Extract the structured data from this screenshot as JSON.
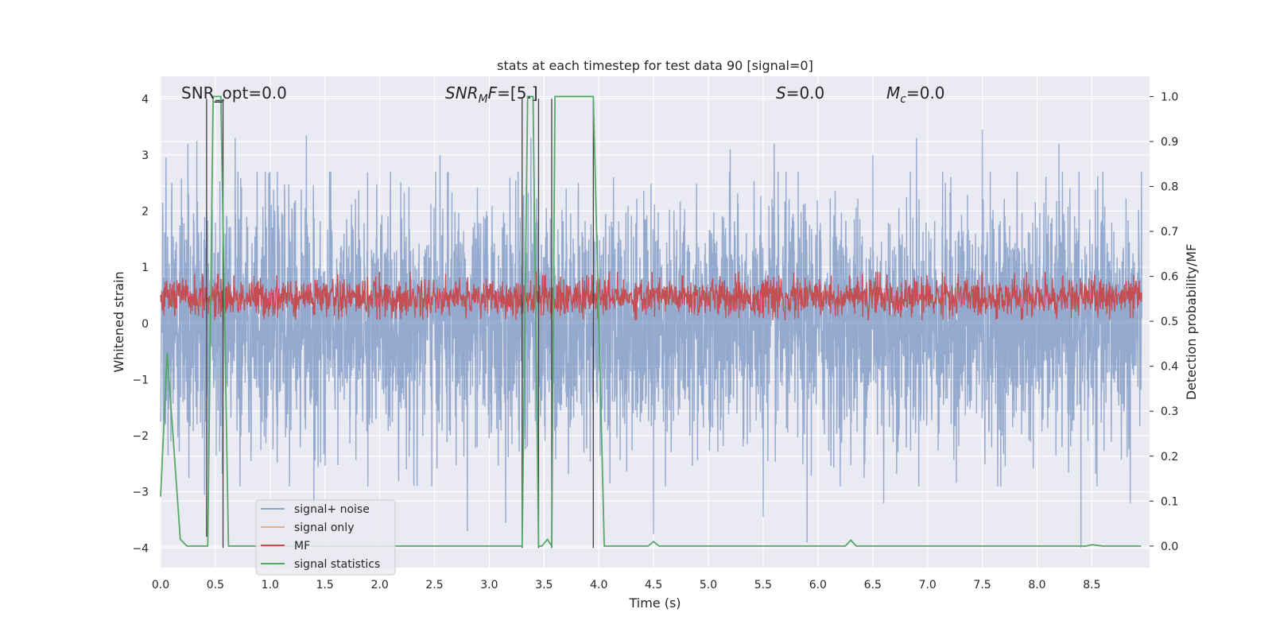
{
  "chart_data": {
    "type": "line",
    "title": "stats at each timestep for test data 90 [signal=0]",
    "xlabel": "Time (s)",
    "ylabel": "Whitened strain",
    "y2label": "Detection probability/MF",
    "xlim": [
      0.0,
      9.0
    ],
    "ylim": [
      -4.35,
      4.4
    ],
    "y2lim": [
      -0.048,
      1.045
    ],
    "x_ticks": [
      "0.0",
      "0.5",
      "1.0",
      "1.5",
      "2.0",
      "2.5",
      "3.0",
      "3.5",
      "4.0",
      "4.5",
      "5.0",
      "5.5",
      "6.0",
      "6.5",
      "7.0",
      "7.5",
      "8.0",
      "8.5"
    ],
    "y_ticks": [
      "−4",
      "−3",
      "−2",
      "−1",
      "0",
      "1",
      "2",
      "3",
      "4"
    ],
    "y2_ticks": [
      "0.0",
      "0.1",
      "0.2",
      "0.3",
      "0.4",
      "0.5",
      "0.6",
      "0.7",
      "0.8",
      "0.9",
      "1.0"
    ],
    "grid": true,
    "legend_position": "lower-left",
    "annotations": {
      "snr_opt": "SNR_opt=0.0",
      "snr_mf_main": "SNR",
      "snr_mf_sub": "M",
      "snr_mf_italic": "F",
      "snr_mf_value": "=[5.]",
      "s_italic": "S",
      "s_value": "=0.0",
      "mc_italic": "M",
      "mc_sub": "c",
      "mc_value": "=0.0"
    },
    "series": [
      {
        "name": "signal+ noise",
        "color": "#4c72b0",
        "axis": "left",
        "description_values": {
          "typical_range": [
            -2.5,
            2.5
          ],
          "peak_max": 3.45,
          "peak_min": -4.0
        },
        "peaks": [
          {
            "x": 0.05,
            "y": 2.95
          },
          {
            "x": 0.25,
            "y": 3.2
          },
          {
            "x": 0.33,
            "y": 3.25
          },
          {
            "x": 0.68,
            "y": 3.3
          },
          {
            "x": 1.33,
            "y": 3.35
          },
          {
            "x": 2.55,
            "y": 3.0
          },
          {
            "x": 3.15,
            "y": 3.3
          },
          {
            "x": 3.38,
            "y": 3.3
          },
          {
            "x": 4.5,
            "y": 3.0
          },
          {
            "x": 5.2,
            "y": 3.1
          },
          {
            "x": 5.6,
            "y": 3.2
          },
          {
            "x": 6.5,
            "y": 3.0
          },
          {
            "x": 6.9,
            "y": 3.3
          },
          {
            "x": 7.5,
            "y": 3.45
          },
          {
            "x": 8.2,
            "y": 3.2
          },
          {
            "x": 8.85,
            "y": 3.45
          },
          {
            "x": 0.4,
            "y": -3.05
          },
          {
            "x": 1.4,
            "y": -3.35
          },
          {
            "x": 2.8,
            "y": -3.7
          },
          {
            "x": 3.15,
            "y": -3.55
          },
          {
            "x": 4.5,
            "y": -3.75
          },
          {
            "x": 5.5,
            "y": -3.45
          },
          {
            "x": 5.9,
            "y": -3.9
          },
          {
            "x": 6.6,
            "y": -3.2
          },
          {
            "x": 8.4,
            "y": -4.0
          },
          {
            "x": 8.85,
            "y": -3.2
          }
        ]
      },
      {
        "name": "signal only",
        "color": "#dd8452",
        "axis": "left",
        "x": [
          0.0,
          9.0
        ],
        "y": [
          0.0,
          0.0
        ]
      },
      {
        "name": "MF",
        "color": "#c44e52",
        "axis": "right",
        "description_values": {
          "typical_range": [
            0.5,
            0.62
          ],
          "peak_max": 0.63
        }
      },
      {
        "name": "signal statistics",
        "color": "#55a868",
        "axis": "right",
        "x": [
          0.0,
          0.06,
          0.18,
          0.24,
          0.43,
          0.48,
          0.5,
          0.55,
          0.62,
          0.68,
          3.3,
          3.35,
          3.4,
          3.45,
          3.48,
          3.53,
          3.57,
          3.6,
          3.65,
          3.95,
          4.05,
          4.45,
          4.5,
          4.55,
          6.25,
          6.3,
          6.35,
          8.45,
          8.5,
          8.6,
          8.95
        ],
        "y": [
          0.11,
          0.43,
          0.015,
          0.0,
          0.0,
          1.0,
          1.0,
          1.0,
          0.0,
          0.0,
          0.0,
          1.0,
          1.0,
          0.0,
          0.0,
          0.015,
          0.0,
          1.0,
          1.0,
          1.0,
          0.0,
          0.0,
          0.01,
          0.0,
          0.0,
          0.013,
          0.0,
          0.0,
          0.003,
          0.0,
          0.0
        ]
      },
      {
        "name": "",
        "color": "#404040",
        "axis": "left",
        "type": "vlines",
        "x": [
          0.42,
          0.57,
          3.3,
          3.45,
          3.57,
          3.95
        ],
        "y_from": [
          -3.8,
          -4.0,
          -4.0,
          -4.0,
          -4.0,
          -4.0
        ],
        "y_to": [
          4.0,
          4.0,
          4.0,
          4.0,
          4.0,
          4.0
        ]
      }
    ]
  }
}
